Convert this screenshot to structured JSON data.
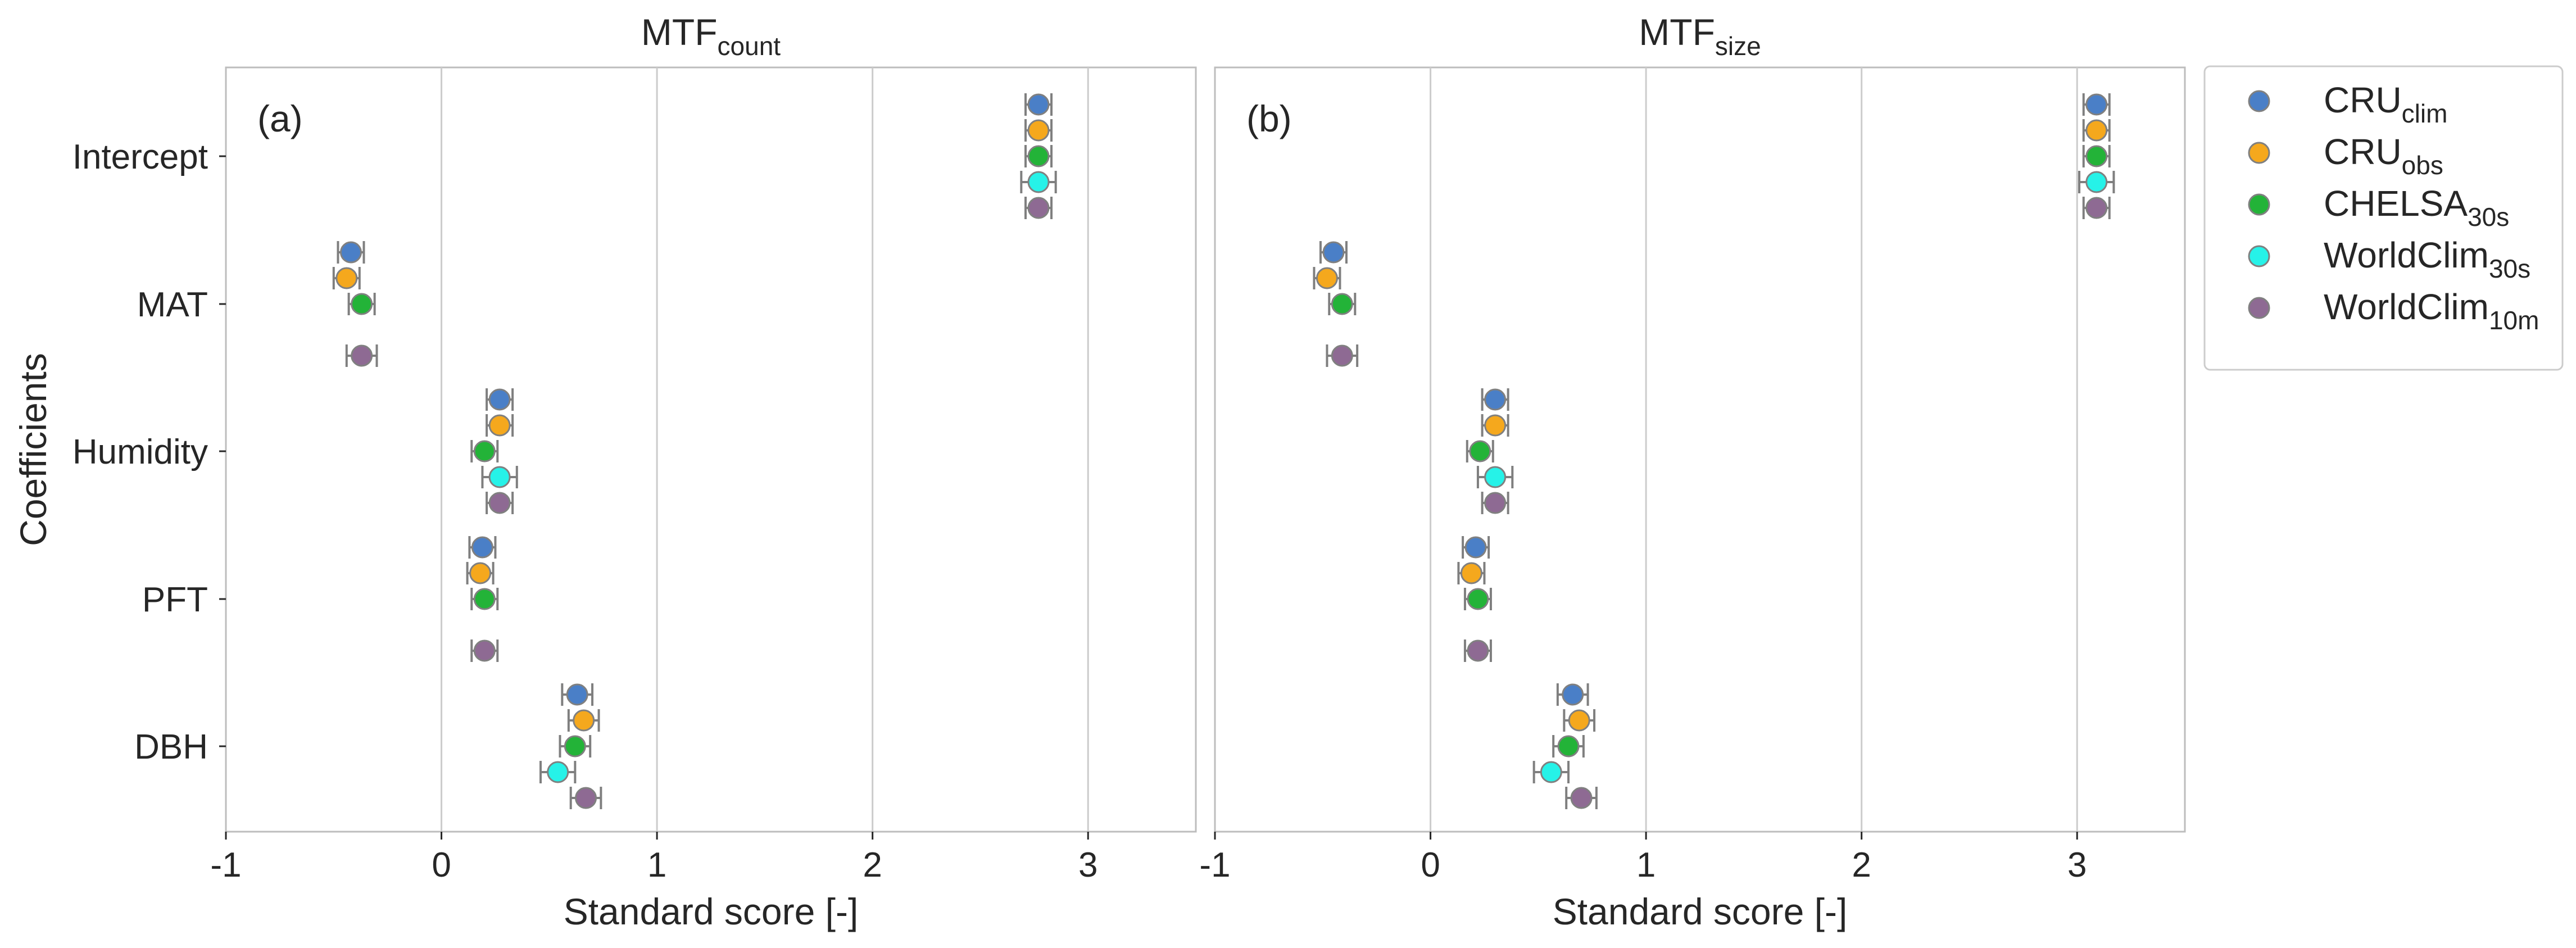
{
  "figure": {
    "ylabel": "Coefficients"
  },
  "colors": {
    "CRU_clim": "#4a7fc7",
    "CRU_obs": "#f5a81d",
    "CHELSA_30s": "#23b338",
    "WorldClim_30s": "#26f2e8",
    "WorldClim_10m": "#8e6a93",
    "errorbar": "#7f7f7f",
    "grid": "#cccccc",
    "frame": "#bdbdbd"
  },
  "chart_data": [
    {
      "type": "scatter",
      "panel_label": "(a)",
      "title": "MTF",
      "title_sub": "count",
      "xlabel": "Standard score [-]",
      "xlim": [
        -1,
        3.5
      ],
      "xticks": [
        "-1",
        "0",
        "1",
        "2",
        "3"
      ],
      "categories": [
        "Intercept",
        "MAT",
        "Humidity",
        "PFT",
        "DBH"
      ],
      "grid": true,
      "series": [
        {
          "key": "CRU_clim",
          "values": [
            2.77,
            -0.42,
            0.27,
            0.19,
            0.63
          ],
          "errors": [
            0.06,
            0.06,
            0.06,
            0.06,
            0.07
          ]
        },
        {
          "key": "CRU_obs",
          "values": [
            2.77,
            -0.44,
            0.27,
            0.18,
            0.66
          ],
          "errors": [
            0.06,
            0.06,
            0.06,
            0.06,
            0.07
          ]
        },
        {
          "key": "CHELSA_30s",
          "values": [
            2.77,
            -0.37,
            0.2,
            0.2,
            0.62
          ],
          "errors": [
            0.06,
            0.06,
            0.06,
            0.06,
            0.07
          ]
        },
        {
          "key": "WorldClim_30s",
          "values": [
            2.77,
            null,
            0.27,
            null,
            0.54
          ],
          "errors": [
            0.08,
            null,
            0.08,
            null,
            0.08
          ]
        },
        {
          "key": "WorldClim_10m",
          "values": [
            2.77,
            -0.37,
            0.27,
            0.2,
            0.67
          ],
          "errors": [
            0.06,
            0.07,
            0.06,
            0.06,
            0.07
          ]
        }
      ]
    },
    {
      "type": "scatter",
      "panel_label": "(b)",
      "title": "MTF",
      "title_sub": "size",
      "xlabel": "Standard score [-]",
      "xlim": [
        -1,
        3.5
      ],
      "xticks": [
        "-1",
        "0",
        "1",
        "2",
        "3"
      ],
      "categories": [
        "Intercept",
        "MAT",
        "Humidity",
        "PFT",
        "DBH"
      ],
      "grid": true,
      "series": [
        {
          "key": "CRU_clim",
          "values": [
            3.09,
            -0.45,
            0.3,
            0.21,
            0.66
          ],
          "errors": [
            0.06,
            0.06,
            0.06,
            0.06,
            0.07
          ]
        },
        {
          "key": "CRU_obs",
          "values": [
            3.09,
            -0.48,
            0.3,
            0.19,
            0.69
          ],
          "errors": [
            0.06,
            0.06,
            0.06,
            0.06,
            0.07
          ]
        },
        {
          "key": "CHELSA_30s",
          "values": [
            3.09,
            -0.41,
            0.23,
            0.22,
            0.64
          ],
          "errors": [
            0.06,
            0.06,
            0.06,
            0.06,
            0.07
          ]
        },
        {
          "key": "WorldClim_30s",
          "values": [
            3.09,
            null,
            0.3,
            null,
            0.56
          ],
          "errors": [
            0.08,
            null,
            0.08,
            null,
            0.08
          ]
        },
        {
          "key": "WorldClim_10m",
          "values": [
            3.09,
            -0.41,
            0.3,
            0.22,
            0.7
          ],
          "errors": [
            0.06,
            0.07,
            0.06,
            0.06,
            0.07
          ]
        }
      ]
    }
  ],
  "legend": {
    "position": "right",
    "items": [
      {
        "key": "CRU_clim",
        "name": "CRU",
        "sub": "clim"
      },
      {
        "key": "CRU_obs",
        "name": "CRU",
        "sub": "obs"
      },
      {
        "key": "CHELSA_30s",
        "name": "CHELSA",
        "sub": "30s"
      },
      {
        "key": "WorldClim_30s",
        "name": "WorldClim",
        "sub": "30s"
      },
      {
        "key": "WorldClim_10m",
        "name": "WorldClim",
        "sub": "10m"
      }
    ]
  }
}
